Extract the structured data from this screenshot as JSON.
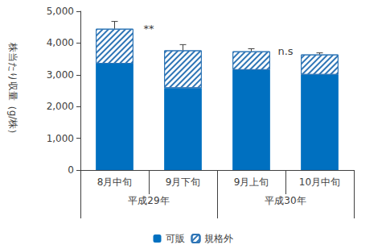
{
  "chart_data": {
    "type": "bar",
    "stacked": true,
    "grid": false,
    "legend": "bottom",
    "y_label": "株当たり収量（g/株）",
    "categories": [
      "8月中旬",
      "9月下旬",
      "9月上旬",
      "10月中旬"
    ],
    "category_groups": [
      {
        "label": "平成29年",
        "categories": [
          "8月中旬",
          "9月下旬"
        ]
      },
      {
        "label": "平成30年",
        "categories": [
          "9月上旬",
          "10月中旬"
        ]
      }
    ],
    "series": [
      {
        "name": "可販",
        "color": "#0070c0",
        "values": [
          3350,
          2580,
          3150,
          3000
        ]
      },
      {
        "name": "規格外",
        "color": "#2e75b6",
        "values": [
          1100,
          1190,
          590,
          640
        ]
      }
    ],
    "total_errors": [
      230,
      180,
      80,
      50
    ],
    "annotations": [
      {
        "text": "**",
        "group": "平成29年"
      },
      {
        "text": "n.s",
        "group": "平成30年"
      }
    ],
    "ylim": [
      0,
      5000
    ],
    "yticks": [
      0,
      {
        "value": 1000,
        "label": "1,000"
      },
      {
        "value": 2000,
        "label": "2,000"
      },
      {
        "value": 3000,
        "label": "3,000"
      },
      {
        "value": 4000,
        "label": "4,000"
      },
      {
        "value": 5000,
        "label": "5,000"
      }
    ]
  }
}
